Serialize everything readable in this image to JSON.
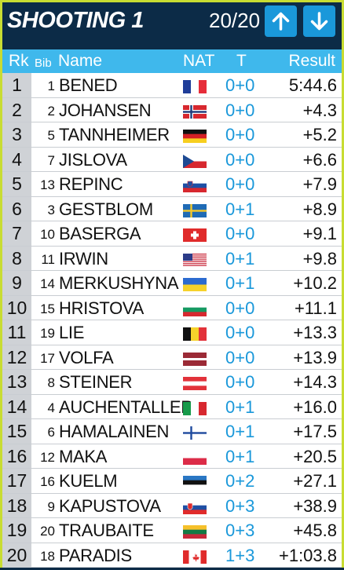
{
  "header": {
    "title": "SHOOTING 1",
    "counter": "20/20",
    "up_icon": "arrow-up-icon",
    "down_icon": "arrow-down-icon"
  },
  "columns": {
    "rk": "Rk",
    "bib": "Bib",
    "name": "Name",
    "nat": "NAT",
    "t": "T",
    "result": "Result"
  },
  "colors": {
    "header_bg": "#0c2b47",
    "column_header_bg": "#3fb8ec",
    "button_bg": "#1a98da",
    "shots_color": "#1a98da",
    "frame_border": "#c8dc32"
  },
  "rows": [
    {
      "rk": "1",
      "bib": "1",
      "name": "BENED",
      "nat": "FRA",
      "t": "0+0",
      "result": "5:44.6"
    },
    {
      "rk": "2",
      "bib": "2",
      "name": "JOHANSEN",
      "nat": "NOR",
      "t": "0+0",
      "result": "+4.3"
    },
    {
      "rk": "3",
      "bib": "5",
      "name": "TANNHEIMER",
      "nat": "GER",
      "t": "0+0",
      "result": "+5.2"
    },
    {
      "rk": "4",
      "bib": "7",
      "name": "JISLOVA",
      "nat": "CZE",
      "t": "0+0",
      "result": "+6.6"
    },
    {
      "rk": "5",
      "bib": "13",
      "name": "REPINC",
      "nat": "SLO",
      "t": "0+0",
      "result": "+7.9"
    },
    {
      "rk": "6",
      "bib": "3",
      "name": "GESTBLOM",
      "nat": "SWE",
      "t": "0+1",
      "result": "+8.9"
    },
    {
      "rk": "7",
      "bib": "10",
      "name": "BASERGA",
      "nat": "SUI",
      "t": "0+0",
      "result": "+9.1"
    },
    {
      "rk": "8",
      "bib": "11",
      "name": "IRWIN",
      "nat": "USA",
      "t": "0+1",
      "result": "+9.8"
    },
    {
      "rk": "9",
      "bib": "14",
      "name": "MERKUSHYNA",
      "nat": "UKR",
      "t": "0+1",
      "result": "+10.2"
    },
    {
      "rk": "10",
      "bib": "15",
      "name": "HRISTOVA",
      "nat": "BUL",
      "t": "0+0",
      "result": "+11.1"
    },
    {
      "rk": "11",
      "bib": "19",
      "name": "LIE",
      "nat": "BEL",
      "t": "0+0",
      "result": "+13.3"
    },
    {
      "rk": "12",
      "bib": "17",
      "name": "VOLFA",
      "nat": "LAT",
      "t": "0+0",
      "result": "+13.9"
    },
    {
      "rk": "13",
      "bib": "8",
      "name": "STEINER",
      "nat": "AUT",
      "t": "0+0",
      "result": "+14.3"
    },
    {
      "rk": "14",
      "bib": "4",
      "name": "AUCHENTALLER",
      "nat": "ITA",
      "t": "0+1",
      "result": "+16.0"
    },
    {
      "rk": "15",
      "bib": "6",
      "name": "HAMALAINEN",
      "nat": "FIN",
      "t": "0+1",
      "result": "+17.5"
    },
    {
      "rk": "16",
      "bib": "12",
      "name": "MAKA",
      "nat": "POL",
      "t": "0+1",
      "result": "+20.5"
    },
    {
      "rk": "17",
      "bib": "16",
      "name": "KUELM",
      "nat": "EST",
      "t": "0+2",
      "result": "+27.1"
    },
    {
      "rk": "18",
      "bib": "9",
      "name": "KAPUSTOVA",
      "nat": "SVK",
      "t": "0+3",
      "result": "+38.9"
    },
    {
      "rk": "19",
      "bib": "20",
      "name": "TRAUBAITE",
      "nat": "LTU",
      "t": "0+3",
      "result": "+45.8"
    },
    {
      "rk": "20",
      "bib": "18",
      "name": "PARADIS",
      "nat": "CAN",
      "t": "1+3",
      "result": "+1:03.8"
    }
  ]
}
